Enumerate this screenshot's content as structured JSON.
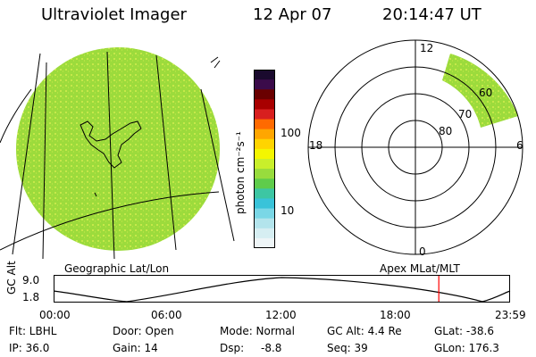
{
  "header": {
    "instrument": "Ultraviolet Imager",
    "date": "12 Apr 07",
    "time": "20:14:47 UT"
  },
  "colors": {
    "disk_fill": "#9cdb3c",
    "disk_speckle": "#c6e84a",
    "grid_line": "#000000",
    "land_outline": "#000000",
    "cursor_line": "#ff0000"
  },
  "colorbar": {
    "label": "photon cm⁻²s⁻¹",
    "ticks": [
      "100",
      "10"
    ],
    "colors": [
      "#1a0a2e",
      "#3b0b4a",
      "#6a0000",
      "#a80000",
      "#d81f1f",
      "#ff6a00",
      "#ffa600",
      "#ffd400",
      "#f4f600",
      "#c9ef2b",
      "#98dc3d",
      "#5fcc4b",
      "#3dc6a3",
      "#39c3d9",
      "#7ad7e6",
      "#b3e4ec",
      "#d6eef2",
      "#eef5f7"
    ]
  },
  "geo_panel": {
    "caption": "Geographic Lat/Lon"
  },
  "polar_panel": {
    "caption": "Apex MLat/MLT",
    "mlt_labels": {
      "top": "12",
      "left": "18",
      "right": "6",
      "bottom": "0"
    },
    "lat_labels": [
      "60",
      "70",
      "80"
    ]
  },
  "timeline": {
    "axis_label": "GC Alt",
    "y_top": "9.0",
    "y_bottom": "1.8",
    "x_ticks": [
      "00:00",
      "06:00",
      "12:00",
      "18:00",
      "23:59"
    ],
    "cursor_hour": 20.25
  },
  "status": {
    "flt": "Flt: LBHL",
    "ip": "IP: 36.0",
    "door": "Door: Open",
    "gain": "Gain: 14",
    "mode": "Mode: Normal",
    "dsp_label": "Dsp:",
    "dsp_value": "-8.8",
    "gc_alt": "GC Alt: 4.4 Re",
    "seq": "Seq: 39",
    "glat": "GLat: -38.6",
    "glon": "GLon: 176.3"
  }
}
